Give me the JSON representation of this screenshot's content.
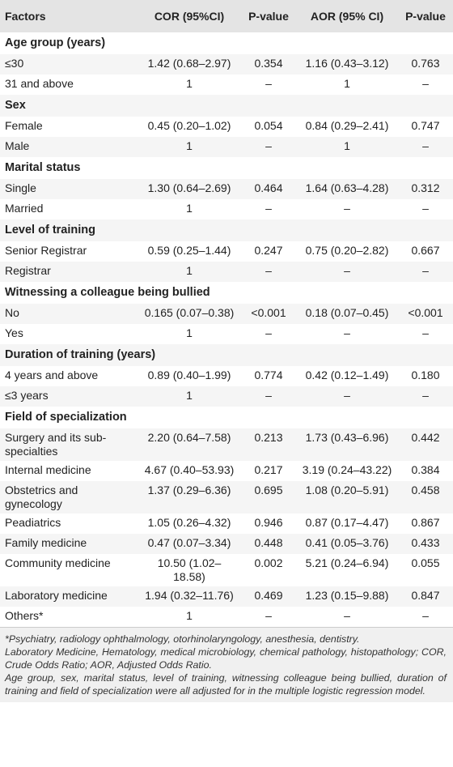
{
  "table": {
    "header": [
      "Factors",
      "COR (95%CI)",
      "P-value",
      "AOR (95% CI)",
      "P-value"
    ],
    "sections": [
      {
        "title": "Age group (years)",
        "rows": [
          [
            "≤30",
            "1.42 (0.68–2.97)",
            "0.354",
            "1.16 (0.43–3.12)",
            "0.763"
          ],
          [
            "31 and above",
            "1",
            "–",
            "1",
            "–"
          ]
        ]
      },
      {
        "title": "Sex",
        "rows": [
          [
            "Female",
            "0.45 (0.20–1.02)",
            "0.054",
            "0.84 (0.29–2.41)",
            "0.747"
          ],
          [
            "Male",
            "1",
            "–",
            "1",
            "–"
          ]
        ]
      },
      {
        "title": "Marital status",
        "rows": [
          [
            "Single",
            "1.30 (0.64–2.69)",
            "0.464",
            "1.64 (0.63–4.28)",
            "0.312"
          ],
          [
            "Married",
            "1",
            "–",
            "–",
            "–"
          ]
        ]
      },
      {
        "title": "Level of training",
        "rows": [
          [
            "Senior Registrar",
            "0.59 (0.25–1.44)",
            "0.247",
            "0.75 (0.20–2.82)",
            "0.667"
          ],
          [
            "Registrar",
            "1",
            "–",
            "–",
            "–"
          ]
        ]
      },
      {
        "title": "Witnessing a colleague being bullied",
        "rows": [
          [
            "No",
            "0.165 (0.07–0.38)",
            "<0.001",
            "0.18 (0.07–0.45)",
            "<0.001"
          ],
          [
            "Yes",
            "1",
            "–",
            "–",
            "–"
          ]
        ]
      },
      {
        "title": "Duration of training (years)",
        "rows": [
          [
            "4 years and above",
            "0.89 (0.40–1.99)",
            "0.774",
            "0.42 (0.12–1.49)",
            "0.180"
          ],
          [
            "≤3 years",
            "1",
            "–",
            "–",
            "–"
          ]
        ]
      },
      {
        "title": "Field of specialization",
        "rows": [
          [
            "Surgery and its sub-specialties",
            "2.20 (0.64–7.58)",
            "0.213",
            "1.73 (0.43–6.96)",
            "0.442"
          ],
          [
            "Internal medicine",
            "4.67 (0.40–53.93)",
            "0.217",
            "3.19 (0.24–43.22)",
            "0.384"
          ],
          [
            "Obstetrics and gynecology",
            "1.37 (0.29–6.36)",
            "0.695",
            "1.08 (0.20–5.91)",
            "0.458"
          ],
          [
            "Peadiatrics",
            "1.05 (0.26–4.32)",
            "0.946",
            "0.87 (0.17–4.47)",
            "0.867"
          ],
          [
            "Family medicine",
            "0.47 (0.07–3.34)",
            "0.448",
            "0.41 (0.05–3.76)",
            "0.433"
          ],
          [
            "Community medicine",
            "10.50 (1.02–18.58)",
            "0.002",
            "5.21 (0.24–6.94)",
            "0.055"
          ],
          [
            "Laboratory medicine",
            "1.94 (0.32–11.76)",
            "0.469",
            "1.23 (0.15–9.88)",
            "0.847"
          ],
          [
            "Others*",
            "1",
            "–",
            "–",
            "–"
          ]
        ]
      }
    ]
  },
  "footnotes": [
    "*Psychiatry, radiology ophthalmology, otorhinolaryngology, anesthesia, dentistry.",
    "Laboratory Medicine, Hematology, medical microbiology, chemical pathology, histopathology; COR, Crude Odds Ratio; AOR, Adjusted Odds Ratio.",
    "Age group, sex, marital status, level of training, witnessing colleague being bullied, duration of training and field of specialization were all adjusted for in the multiple logistic regression model."
  ]
}
